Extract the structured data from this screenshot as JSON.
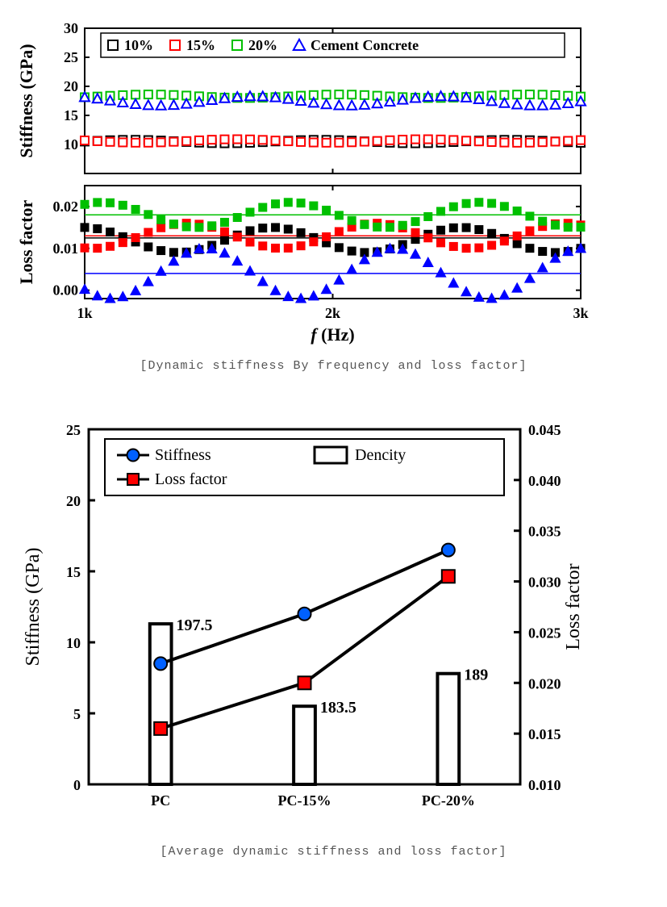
{
  "figure1": {
    "caption": "[Dynamic stiffness By frequency and loss factor]",
    "xlabel": "f (Hz)",
    "xticks": [
      1000,
      2000,
      3000
    ],
    "xtick_labels": [
      "1k",
      "2k",
      "3k"
    ],
    "xlim": [
      1000,
      3000
    ],
    "top": {
      "ylabel": "Stiffness (GPa)",
      "ylim": [
        5,
        30
      ],
      "yticks": [
        10,
        15,
        20,
        25,
        30
      ],
      "legend": [
        {
          "label": "10%",
          "color": "#000000",
          "marker": "open-square"
        },
        {
          "label": "15%",
          "color": "#ff0000",
          "marker": "open-square"
        },
        {
          "label": "20%",
          "color": "#00c000",
          "marker": "open-square"
        },
        {
          "label": "Cement Concrete",
          "color": "#0000ff",
          "marker": "open-triangle"
        }
      ],
      "series": {
        "s10": {
          "color": "#000000",
          "marker": "open-square",
          "y_avg": 10.5,
          "jitter": 0.3
        },
        "s15": {
          "color": "#ff0000",
          "marker": "open-square",
          "y_avg": 10.6,
          "jitter": 0.3
        },
        "s20": {
          "color": "#00c000",
          "marker": "open-square",
          "y_avg": 18.3,
          "jitter": 0.3
        },
        "cc": {
          "color": "#0000ff",
          "marker": "open-triangle",
          "y_avg": 17.5,
          "jitter": 0.8
        }
      }
    },
    "bottom": {
      "ylabel": "Loss factor",
      "ylim": [
        -0.002,
        0.025
      ],
      "yticks": [
        0.0,
        0.01,
        0.02
      ],
      "ytick_labels": [
        "0.00",
        "0.01",
        "0.02"
      ],
      "hlines": [
        {
          "y": 0.0125,
          "color": "#000000"
        },
        {
          "y": 0.013,
          "color": "#ff0000"
        },
        {
          "y": 0.018,
          "color": "#00c000"
        },
        {
          "y": 0.004,
          "color": "#0000ff"
        }
      ],
      "series": {
        "s10": {
          "color": "#000000",
          "marker": "filled-square",
          "y_avg": 0.012,
          "jitter": 0.003
        },
        "s15": {
          "color": "#ff0000",
          "marker": "filled-square",
          "y_avg": 0.013,
          "jitter": 0.003
        },
        "s20": {
          "color": "#00c000",
          "marker": "filled-square",
          "y_avg": 0.018,
          "jitter": 0.003
        },
        "cc": {
          "color": "#0000ff",
          "marker": "filled-triangle",
          "y_avg": 0.004,
          "jitter": 0.006
        }
      }
    }
  },
  "figure2": {
    "caption": "[Average dynamic stiffness and loss factor]",
    "categories": [
      "PC",
      "PC-15%",
      "PC-20%"
    ],
    "left": {
      "ylabel": "Stiffness (GPa)",
      "ylim": [
        0,
        25
      ],
      "yticks": [
        0,
        5,
        10,
        15,
        20,
        25
      ]
    },
    "right": {
      "ylabel": "Loss factor",
      "ylim": [
        0.01,
        0.045
      ],
      "yticks": [
        0.01,
        0.015,
        0.02,
        0.025,
        0.03,
        0.035,
        0.04,
        0.045
      ],
      "ytick_labels": [
        "0.010",
        "0.015",
        "0.020",
        "0.025",
        "0.030",
        "0.035",
        "0.040",
        "0.045"
      ]
    },
    "legend": [
      {
        "label": "Stiffness",
        "color": "#0060ff",
        "marker": "filled-circle",
        "line": true
      },
      {
        "label": "Loss factor",
        "color": "#ff0000",
        "marker": "filled-square",
        "line": true
      },
      {
        "label": "Dencity",
        "color": "#000000",
        "marker": "bar"
      }
    ],
    "stiffness": {
      "color": "#0060ff",
      "values": [
        8.5,
        12.0,
        16.5
      ]
    },
    "lossfactor": {
      "color": "#ff0000",
      "values": [
        0.0155,
        0.02,
        0.0305
      ]
    },
    "density": {
      "values": [
        197.5,
        183.5,
        189.0
      ],
      "bar_heights": [
        11.3,
        5.5,
        7.8
      ]
    },
    "bar_width": 0.15
  }
}
